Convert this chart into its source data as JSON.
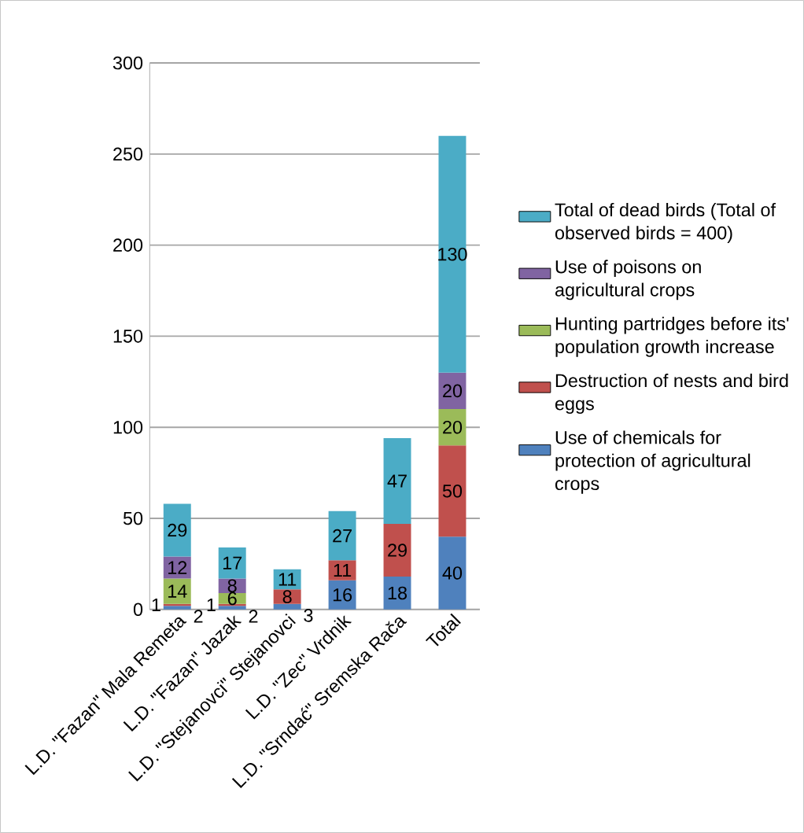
{
  "chart_data": {
    "type": "bar",
    "stacked": true,
    "categories": [
      "L.D. \"Fazan\" Mala Remeta",
      "L.D. \"Fazan\" Jazak",
      "L.D. \"Stejanovci\" Stejanovci",
      "L.D. \"Zec\" Vrdnik",
      "L.D. \"Srndać\" Sremska Rača",
      "Total"
    ],
    "series": [
      {
        "name": "Use of chemicals for protection of agricultural crops",
        "color": "#4f81bd",
        "values": [
          2,
          2,
          3,
          16,
          18,
          40
        ]
      },
      {
        "name": "Destruction of nests and bird eggs",
        "color": "#c0504d",
        "values": [
          1,
          1,
          8,
          11,
          29,
          50
        ]
      },
      {
        "name": "Hunting partridges before its' population growth increase",
        "color": "#9bbb59",
        "values": [
          14,
          6,
          null,
          null,
          null,
          20
        ]
      },
      {
        "name": "Use of poisons on agricultural crops",
        "color": "#8064a2",
        "values": [
          12,
          8,
          null,
          null,
          null,
          20
        ]
      },
      {
        "name": "Total of dead birds (Total of observed birds = 400)",
        "color": "#4bacc6",
        "values": [
          29,
          17,
          11,
          27,
          47,
          130
        ]
      }
    ],
    "ylim": [
      0,
      300
    ],
    "yticks": [
      0,
      50,
      100,
      150,
      200,
      250,
      300
    ],
    "grid": "y",
    "legend": "right",
    "data_labels": true
  }
}
